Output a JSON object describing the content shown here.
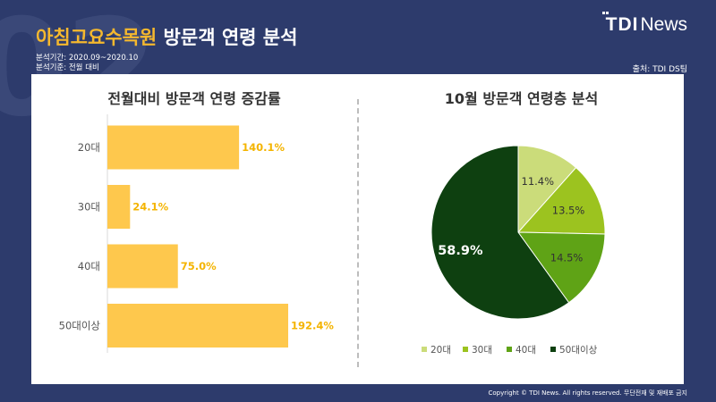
{
  "header": {
    "bg_number": "02",
    "title_highlight": "아침고요수목원",
    "title_rest": " 방문객 연령 분석",
    "period": "분석기간: 2020.09~2020.10",
    "basis": "분석기준: 전월 대비",
    "logo_tdi": "TDI",
    "logo_news": "News",
    "source": "출처: TDI DS팀"
  },
  "footer": {
    "copyright": "Copyright © TDI News. All rights reserved. 무단전재 및 재배포 금지"
  },
  "colors": {
    "background": "#2d3b6c",
    "bar": "#fec84d",
    "bar_label": "#f4b400",
    "accent": "#f5b82e",
    "pie_20": "#cbdc7a",
    "pie_30": "#9cc31f",
    "pie_40": "#5fa316",
    "pie_50": "#0e4010"
  },
  "chart_data": [
    {
      "type": "bar",
      "orientation": "horizontal",
      "title": "전월대비 방문객 연령 증감률",
      "categories": [
        "20대",
        "30대",
        "40대",
        "50대이상"
      ],
      "values": [
        140.1,
        24.1,
        75.0,
        192.4
      ],
      "value_labels": [
        "140.1%",
        "24.1%",
        "75.0%",
        "192.4%"
      ],
      "unit": "%",
      "xlim": [
        0,
        192.4
      ],
      "grid": false
    },
    {
      "type": "pie",
      "title": "10월 방문객 연령층 분석",
      "categories": [
        "20대",
        "30대",
        "40대",
        "50대이상"
      ],
      "values": [
        11.4,
        13.5,
        14.5,
        58.9
      ],
      "value_labels": [
        "11.4%",
        "13.5%",
        "14.5%",
        "58.9%"
      ],
      "legend_position": "bottom"
    }
  ]
}
